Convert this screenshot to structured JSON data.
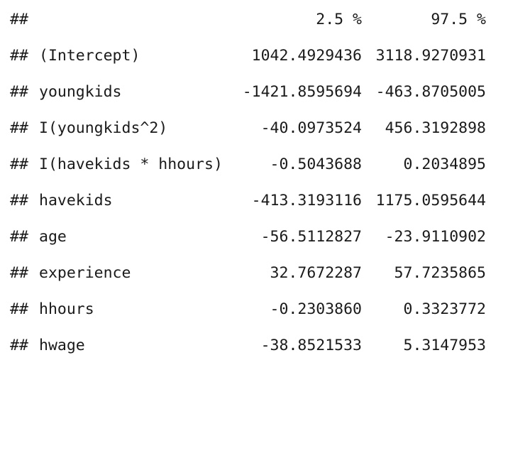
{
  "console": {
    "prompt_prefix": "##",
    "header": {
      "lower": "2.5 %",
      "upper": "97.5 %"
    },
    "rows": [
      {
        "term": "(Intercept)",
        "lower": "1042.4929436",
        "upper": "3118.9270931"
      },
      {
        "term": "youngkids",
        "lower": "-1421.8595694",
        "upper": "-463.8705005"
      },
      {
        "term": "I(youngkids^2)",
        "lower": "-40.0973524",
        "upper": "456.3192898"
      },
      {
        "term": "I(havekids * hhours)",
        "lower": "-0.5043688",
        "upper": "0.2034895"
      },
      {
        "term": "havekids",
        "lower": "-413.3193116",
        "upper": "1175.0595644"
      },
      {
        "term": "age",
        "lower": "-56.5112827",
        "upper": "-23.9110902"
      },
      {
        "term": "experience",
        "lower": "32.7672287",
        "upper": "57.7235865"
      },
      {
        "term": "hhours",
        "lower": "-0.2303860",
        "upper": "0.3323772"
      },
      {
        "term": "hwage",
        "lower": "-38.8521533",
        "upper": "5.3147953"
      }
    ]
  }
}
